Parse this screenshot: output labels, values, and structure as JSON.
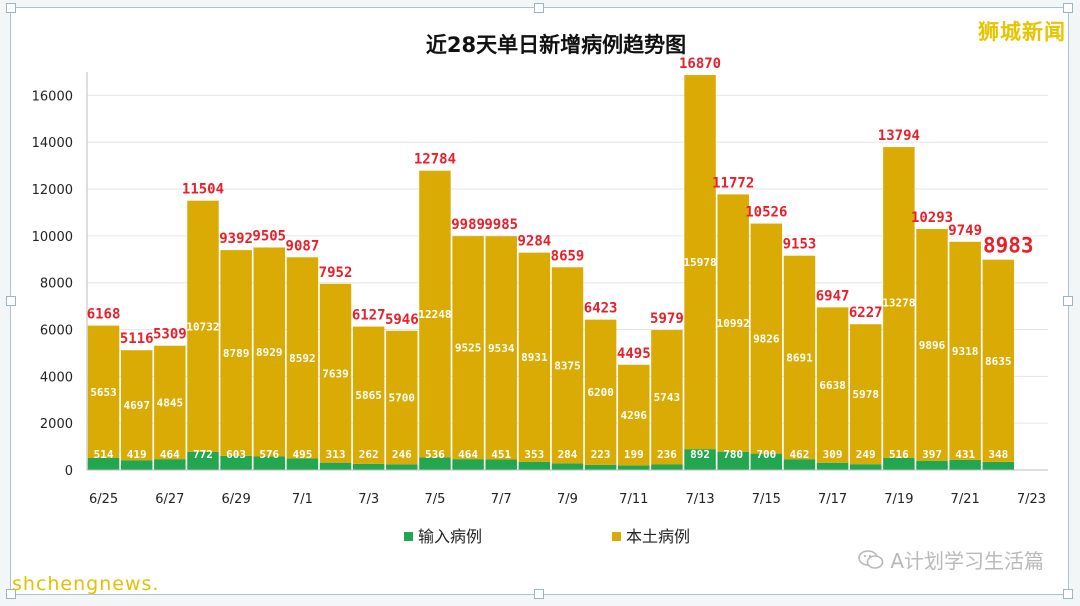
{
  "watermark_top": "狮城新闻",
  "watermark_bottom": "A计划学习生活篇",
  "caption_bottom": "shchengnews.",
  "colors": {
    "imported": "#22a650",
    "local": "#dbab05",
    "total_label": "#e8202a",
    "inner_label": "#ffffff"
  },
  "chart_data": {
    "type": "bar",
    "title": "近28天单日新增病例趋势图",
    "stacked": true,
    "categories": [
      "6/25",
      "6/26",
      "6/27",
      "6/28",
      "6/29",
      "6/30",
      "7/1",
      "7/2",
      "7/3",
      "7/4",
      "7/5",
      "7/6",
      "7/7",
      "7/8",
      "7/9",
      "7/10",
      "7/11",
      "7/12",
      "7/13",
      "7/14",
      "7/15",
      "7/16",
      "7/17",
      "7/18",
      "7/19",
      "7/20",
      "7/21",
      "7/22"
    ],
    "x_tick_labels": [
      "6/25",
      "6/27",
      "6/29",
      "7/1",
      "7/3",
      "7/5",
      "7/7",
      "7/9",
      "7/11",
      "7/13",
      "7/15",
      "7/17",
      "7/19",
      "7/21",
      "7/23"
    ],
    "series": [
      {
        "name": "输入病例",
        "values": [
          514,
          419,
          464,
          772,
          603,
          576,
          495,
          313,
          262,
          246,
          536,
          464,
          451,
          353,
          284,
          223,
          199,
          236,
          892,
          780,
          700,
          462,
          309,
          249,
          516,
          397,
          431,
          348
        ]
      },
      {
        "name": "本土病例",
        "values": [
          5653,
          4697,
          4845,
          10732,
          8789,
          8929,
          8592,
          7639,
          5865,
          5700,
          12248,
          9525,
          9534,
          8931,
          8375,
          6200,
          4296,
          5743,
          15978,
          10992,
          9826,
          8691,
          6638,
          5978,
          13278,
          9896,
          9318,
          8635
        ]
      }
    ],
    "totals": [
      6168,
      5116,
      5309,
      11504,
      9392,
      9505,
      9087,
      7952,
      6127,
      5946,
      12784,
      9989,
      9985,
      9284,
      8659,
      6423,
      4495,
      5979,
      16870,
      11772,
      10526,
      9153,
      6947,
      6227,
      13794,
      10293,
      9749,
      8983
    ],
    "ylim": [
      0,
      17000
    ],
    "y_ticks": [
      0,
      2000,
      4000,
      6000,
      8000,
      10000,
      12000,
      14000,
      16000
    ],
    "grid": true,
    "legend_position": "bottom"
  }
}
